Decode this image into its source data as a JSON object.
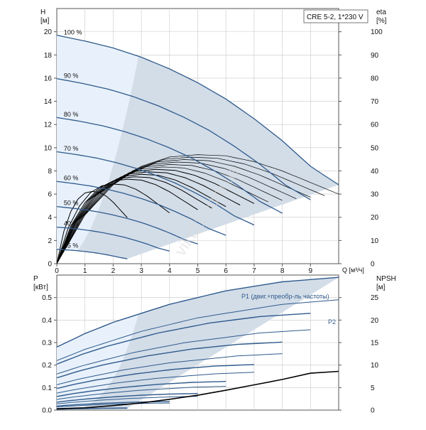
{
  "colors": {
    "curve": "#2f5a8c",
    "region_dark": "#d3dde8",
    "region_light": "#e8f1fb",
    "grid": "#c8c8c8",
    "eta": "#000000",
    "frame": "#555555"
  },
  "watermark": "vikt21.com.ua",
  "chart_data": [
    {
      "type": "line",
      "title": "CRE 5-2, 1*230 V",
      "xlabel": "Q [м³/ч]",
      "ylabel": "H\n[м]",
      "y2label": "eta\n[%]",
      "xlim": [
        0,
        10
      ],
      "ylim": [
        0,
        22
      ],
      "y2lim": [
        0,
        110
      ],
      "xticks": [
        0,
        1,
        2,
        3,
        4,
        5,
        6,
        7,
        8,
        9
      ],
      "yticks": [
        0,
        2,
        4,
        6,
        8,
        10,
        12,
        14,
        16,
        18,
        20
      ],
      "y2ticks": [
        0,
        10,
        20,
        30,
        40,
        50,
        60,
        70,
        80,
        90,
        100
      ],
      "grid": true,
      "series": [
        {
          "name": "100 %",
          "speed": 1.0,
          "x": [
            0,
            1,
            2,
            3,
            4,
            5,
            6,
            7,
            8,
            9,
            10
          ],
          "values": [
            19.7,
            19.2,
            18.6,
            17.8,
            16.8,
            15.6,
            14.2,
            12.5,
            10.6,
            8.4,
            6.8
          ]
        },
        {
          "name": "90 %",
          "speed": 0.9
        },
        {
          "name": "80 %",
          "speed": 0.8
        },
        {
          "name": "70 %",
          "speed": 0.7
        },
        {
          "name": "60 %",
          "speed": 0.6
        },
        {
          "name": "50 %",
          "speed": 0.5
        },
        {
          "name": "40 %",
          "speed": 0.4
        },
        {
          "name": "25 %",
          "speed": 0.25
        }
      ],
      "eta_best": {
        "x": [
          0,
          1,
          2,
          3,
          4,
          5,
          6,
          7,
          8,
          9,
          10
        ],
        "values": [
          0,
          21,
          34,
          42,
          46,
          47,
          46.5,
          44,
          40,
          35,
          30
        ]
      }
    },
    {
      "type": "line",
      "xlabel": "",
      "ylabel": "P\n[кВт]",
      "y2label": "NPSH\n[м]",
      "xlim": [
        0,
        10
      ],
      "ylim": [
        0,
        0.6
      ],
      "y2lim": [
        0,
        30
      ],
      "yticks": [
        0.0,
        0.1,
        0.2,
        0.3,
        0.4,
        0.5
      ],
      "y2ticks": [
        0,
        5,
        10,
        15,
        20,
        25
      ],
      "grid": true,
      "series": [
        {
          "name": "P1 (двиг.+преобр-ль частоты)",
          "x": [
            0,
            1,
            2,
            3,
            4,
            5,
            6,
            7,
            8,
            9,
            10
          ],
          "values": [
            0.28,
            0.34,
            0.39,
            0.43,
            0.47,
            0.5,
            0.53,
            0.55,
            0.57,
            0.58,
            0.59
          ]
        },
        {
          "name": "P2",
          "x": [
            0,
            1,
            2,
            3,
            4,
            5,
            6,
            7,
            8,
            9,
            10
          ],
          "values": [
            0.22,
            0.27,
            0.31,
            0.35,
            0.38,
            0.41,
            0.43,
            0.45,
            0.47,
            0.48,
            0.49
          ]
        },
        {
          "name": "NPSH",
          "x": [
            0,
            1,
            2,
            3,
            4,
            5,
            6,
            7,
            8,
            9,
            10
          ],
          "values": [
            0.3,
            0.5,
            1,
            1.6,
            2.4,
            3.3,
            4.4,
            5.6,
            6.8,
            8.2,
            8.6
          ]
        }
      ]
    }
  ]
}
